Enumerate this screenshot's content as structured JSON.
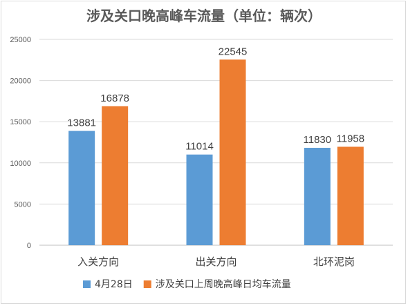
{
  "chart_data": {
    "type": "bar",
    "title": "涉及关口晚高峰车流量（单位：辆次）",
    "categories": [
      "入关方向",
      "出关方向",
      "北环泥岗"
    ],
    "series": [
      {
        "name": "4月28日",
        "values": [
          13881,
          11014,
          11830
        ],
        "color": "#5b9bd5"
      },
      {
        "name": "涉及关口上周晚高峰日均车流量",
        "values": [
          16878,
          22545,
          11958
        ],
        "color": "#ed7d31"
      }
    ],
    "ylim": [
      0,
      25000
    ],
    "yticks": [
      0,
      5000,
      10000,
      15000,
      20000,
      25000
    ],
    "grid": true,
    "legend_position": "bottom",
    "xlabel": "",
    "ylabel": ""
  }
}
